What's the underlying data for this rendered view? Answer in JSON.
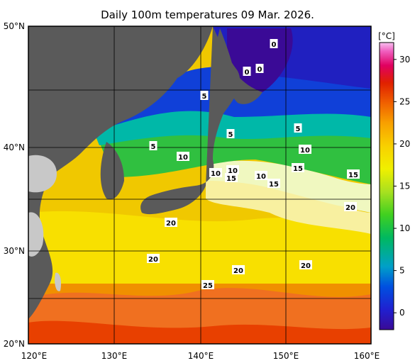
{
  "title": "Daily 100m temperatures 09 Mar. 2026.",
  "lat_labels": [
    "50°N",
    "40°N",
    "30°N",
    "20°N"
  ],
  "lon_labels": [
    "120°E",
    "130°E",
    "140°E",
    "150°E",
    "160°E"
  ],
  "colorbar": {
    "unit": "[°C]",
    "ticks": [
      "30",
      "25",
      "20",
      "15",
      "10",
      "5",
      "0"
    ],
    "range": [
      -2,
      32
    ],
    "colors": [
      "#3a0a96",
      "#2020d0",
      "#0050e0",
      "#00a0c8",
      "#00b860",
      "#40d020",
      "#a8e020",
      "#f0f000",
      "#f8d000",
      "#f8a000",
      "#f06000",
      "#e02000",
      "#e00060",
      "#f060c0",
      "#f8c0f0"
    ]
  },
  "contour_labels": [
    "0",
    "0",
    "0",
    "5",
    "5",
    "5",
    "5",
    "10",
    "10",
    "10",
    "10",
    "10",
    "15",
    "15",
    "15",
    "15",
    "20",
    "20",
    "20",
    "20",
    "20",
    "25"
  ],
  "colors": {
    "land": "#5a5a5a",
    "outside_land": "#c8c8c8",
    "grid": "#000000"
  }
}
